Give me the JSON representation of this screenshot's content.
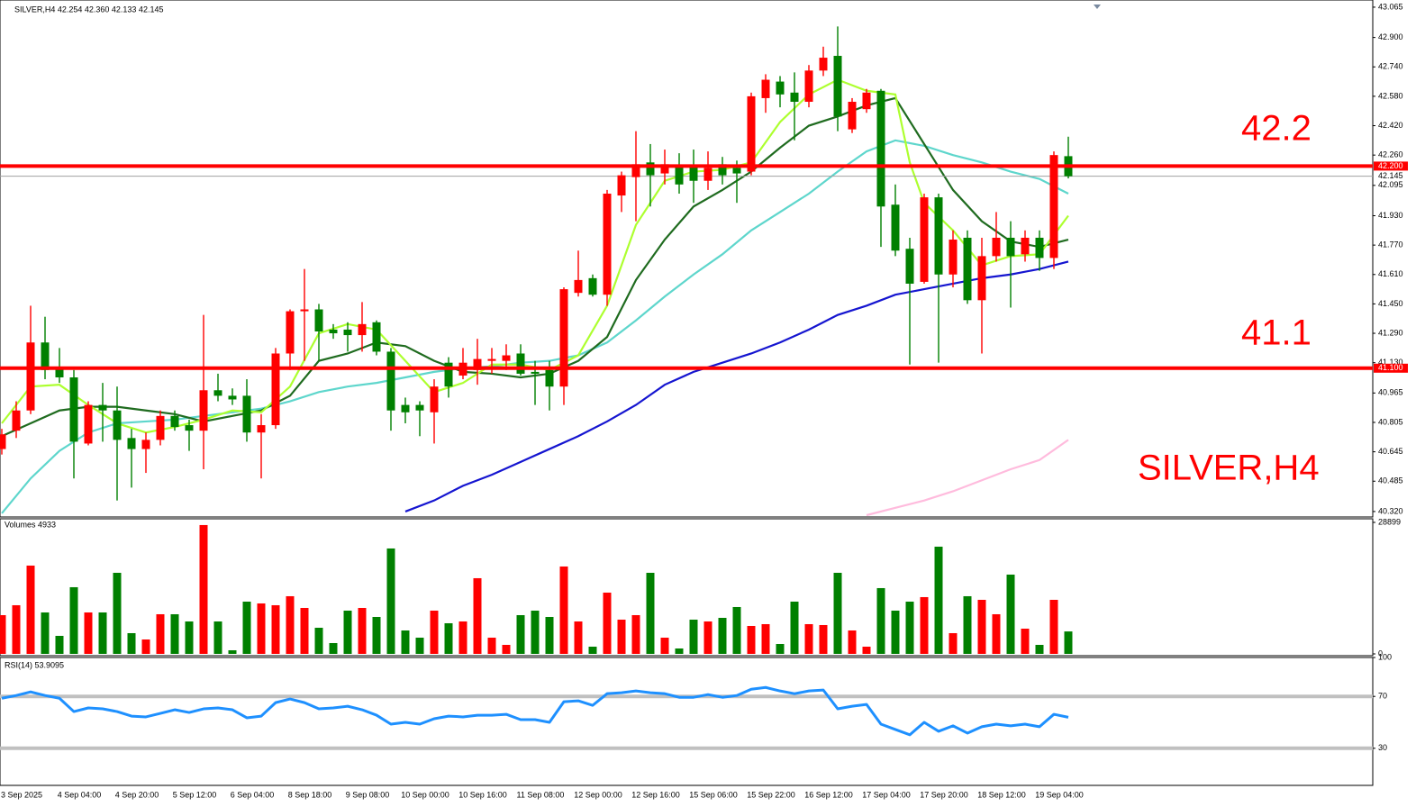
{
  "chart_data": [
    {
      "type": "candlestick",
      "title": "SILVER,H4  42.254 42.360 42.133 42.145",
      "annotations": [
        "42.2",
        "41.1",
        "SILVER,H4"
      ],
      "up_color": "#ff0000",
      "down_color": "#008000",
      "categories": [
        null,
        "3 Sep 2025",
        null,
        null,
        null,
        "4 Sep 04:00",
        null,
        null,
        null,
        "4 Sep 20:00",
        null,
        null,
        null,
        "5 Sep 12:00",
        null,
        null,
        null,
        "6 Sep 04:00",
        null,
        null,
        null,
        "8 Sep 18:00",
        null,
        null,
        null,
        "9 Sep 08:00",
        null,
        null,
        null,
        "10 Sep 00:00",
        null,
        null,
        null,
        "10 Sep 16:00",
        null,
        null,
        null,
        "11 Sep 08:00",
        null,
        null,
        null,
        "12 Sep 00:00",
        null,
        null,
        null,
        "12 Sep 16:00",
        null,
        null,
        null,
        "15 Sep 06:00",
        null,
        null,
        null,
        "15 Sep 22:00",
        null,
        null,
        null,
        "16 Sep 12:00",
        null,
        null,
        null,
        "17 Sep 04:00",
        null,
        null,
        null,
        "17 Sep 20:00",
        null,
        null,
        null,
        "18 Sep 12:00",
        null,
        null,
        null,
        "19 Sep 04:00",
        null
      ],
      "open": [
        40.66,
        40.76,
        40.87,
        41.24,
        41.1,
        41.05,
        40.69,
        40.9,
        40.87,
        40.72,
        40.66,
        40.71,
        40.84,
        40.79,
        40.76,
        40.98,
        40.95,
        40.95,
        40.75,
        40.79,
        41.18,
        41.41,
        41.42,
        41.31,
        41.31,
        41.28,
        41.35,
        41.19,
        40.9,
        40.9,
        40.86,
        41.13,
        41.06,
        41.09,
        41.14,
        41.14,
        41.18,
        41.08,
        41.09,
        41.0,
        41.51,
        41.59,
        41.5,
        42.04,
        42.14,
        42.22,
        42.16,
        42.2,
        42.2,
        42.12,
        42.21,
        42.19,
        42.17,
        42.57,
        42.66,
        42.6,
        42.55,
        42.72,
        42.8,
        42.4,
        42.51,
        42.61,
        41.99,
        41.75,
        41.57,
        42.03,
        41.61,
        41.81,
        41.47,
        41.71,
        41.81,
        41.72,
        41.81,
        41.7,
        42.254
      ],
      "high": [
        40.77,
        40.92,
        41.44,
        41.38,
        41.21,
        41.09,
        40.92,
        41.02,
        41.0,
        40.77,
        40.75,
        40.87,
        40.87,
        40.82,
        41.39,
        41.07,
        40.99,
        41.04,
        40.85,
        41.21,
        41.42,
        41.64,
        41.45,
        41.34,
        41.35,
        41.46,
        41.36,
        41.21,
        40.94,
        40.92,
        41.04,
        41.16,
        41.21,
        41.26,
        41.21,
        41.23,
        41.23,
        41.14,
        41.14,
        41.54,
        41.74,
        41.61,
        42.07,
        42.17,
        42.39,
        42.32,
        42.29,
        42.27,
        42.29,
        42.28,
        42.25,
        42.23,
        42.6,
        42.7,
        42.69,
        42.71,
        42.75,
        42.85,
        42.96,
        42.57,
        42.62,
        42.62,
        42.1,
        41.81,
        42.05,
        42.05,
        41.85,
        41.85,
        41.81,
        41.95,
        41.9,
        41.85,
        41.85,
        42.28,
        42.36
      ],
      "low": [
        40.63,
        40.72,
        40.85,
        41.04,
        41.02,
        40.5,
        40.68,
        40.7,
        40.38,
        40.45,
        40.53,
        40.68,
        40.76,
        40.65,
        40.55,
        40.92,
        40.9,
        40.7,
        40.5,
        40.77,
        41.09,
        41.14,
        41.14,
        41.26,
        41.19,
        41.19,
        41.17,
        40.76,
        40.8,
        40.73,
        40.69,
        40.94,
        41.04,
        41.01,
        41.07,
        41.09,
        41.06,
        40.9,
        40.87,
        40.9,
        41.49,
        41.49,
        41.44,
        41.95,
        41.9,
        41.98,
        42.1,
        42.05,
        42.0,
        42.07,
        42.1,
        42.0,
        42.15,
        42.49,
        42.52,
        42.34,
        42.52,
        42.69,
        42.39,
        42.38,
        42.49,
        41.76,
        41.71,
        41.12,
        41.56,
        41.13,
        41.54,
        41.45,
        41.18,
        41.68,
        41.43,
        41.68,
        41.63,
        41.64,
        42.133
      ],
      "close": [
        40.74,
        40.87,
        41.24,
        41.09,
        41.05,
        40.7,
        40.9,
        40.87,
        40.71,
        40.66,
        40.71,
        40.84,
        40.78,
        40.76,
        40.98,
        40.95,
        40.93,
        40.75,
        40.79,
        41.18,
        41.41,
        41.42,
        41.3,
        41.29,
        41.28,
        41.34,
        41.19,
        40.87,
        40.86,
        40.87,
        41.0,
        41.0,
        41.13,
        41.15,
        41.15,
        41.17,
        41.07,
        41.07,
        41.0,
        41.53,
        41.58,
        41.5,
        42.05,
        42.15,
        42.21,
        42.15,
        42.21,
        42.1,
        42.12,
        42.19,
        42.15,
        42.16,
        42.58,
        42.67,
        42.59,
        42.55,
        42.72,
        42.79,
        42.47,
        42.55,
        42.6,
        41.98,
        41.74,
        41.56,
        42.03,
        41.61,
        41.8,
        41.47,
        41.71,
        41.81,
        41.71,
        41.81,
        41.7,
        42.26,
        42.145
      ],
      "series": [
        {
          "color": "#ff69b4",
          "opacity": 0.45,
          "x": [
            60,
            62,
            64,
            66,
            68,
            70,
            72,
            74
          ],
          "values": [
            40.3,
            40.34,
            40.38,
            40.43,
            40.49,
            40.55,
            40.6,
            40.71
          ]
        },
        {
          "color": "#1515d0",
          "x": [
            28,
            30,
            32,
            34,
            36,
            38,
            40,
            42,
            44,
            46,
            48,
            50,
            52,
            54,
            56,
            58,
            60,
            62,
            64,
            66,
            68,
            70,
            72,
            74
          ],
          "values": [
            40.32,
            40.38,
            40.46,
            40.52,
            40.59,
            40.66,
            40.73,
            40.81,
            40.9,
            41.01,
            41.08,
            41.13,
            41.18,
            41.24,
            41.31,
            41.39,
            41.44,
            41.5,
            41.53,
            41.56,
            41.59,
            41.61,
            41.64,
            41.68
          ]
        },
        {
          "color": "#5ed6cc",
          "x": [
            0,
            2,
            4,
            6,
            8,
            10,
            12,
            14,
            16,
            18,
            20,
            22,
            24,
            26,
            28,
            30,
            32,
            34,
            36,
            38,
            40,
            42,
            44,
            46,
            48,
            50,
            52,
            54,
            56,
            58,
            60,
            62,
            64,
            66,
            68,
            70,
            72,
            74
          ],
          "values": [
            40.31,
            40.5,
            40.65,
            40.75,
            40.8,
            40.81,
            40.82,
            40.84,
            40.86,
            40.88,
            40.92,
            40.97,
            41.0,
            41.02,
            41.05,
            41.08,
            41.1,
            41.11,
            41.13,
            41.14,
            41.17,
            41.24,
            41.36,
            41.49,
            41.61,
            41.72,
            41.85,
            41.95,
            42.05,
            42.17,
            42.28,
            42.34,
            42.31,
            42.26,
            42.22,
            42.17,
            42.13,
            42.05
          ]
        },
        {
          "color": "#1f6b1f",
          "x": [
            0,
            2,
            4,
            6,
            8,
            10,
            12,
            14,
            16,
            18,
            20,
            22,
            24,
            26,
            28,
            30,
            32,
            34,
            36,
            38,
            40,
            42,
            44,
            46,
            48,
            50,
            52,
            54,
            56,
            58,
            60,
            62,
            64,
            66,
            68,
            70,
            72,
            74
          ],
          "values": [
            40.73,
            40.8,
            40.87,
            40.89,
            40.89,
            40.87,
            40.85,
            40.81,
            40.84,
            40.87,
            40.95,
            41.14,
            41.18,
            41.24,
            41.22,
            41.14,
            41.08,
            41.07,
            41.05,
            41.07,
            41.14,
            41.27,
            41.58,
            41.8,
            41.98,
            42.07,
            42.17,
            42.3,
            42.42,
            42.47,
            42.53,
            42.57,
            42.32,
            42.07,
            41.9,
            41.79,
            41.76,
            41.8
          ]
        },
        {
          "color": "#adff2f",
          "x": [
            0,
            2,
            4,
            6,
            8,
            10,
            12,
            14,
            16,
            18,
            20,
            22,
            24,
            26,
            28,
            30,
            32,
            34,
            36,
            38,
            40,
            42,
            44,
            46,
            48,
            50,
            52,
            54,
            56,
            58,
            60,
            62,
            63,
            64,
            66,
            68,
            70,
            72,
            74
          ],
          "values": [
            40.8,
            41.0,
            41.01,
            40.9,
            40.8,
            40.75,
            40.78,
            40.82,
            40.87,
            40.86,
            41.0,
            41.29,
            41.34,
            41.31,
            41.14,
            40.97,
            41.02,
            41.12,
            41.12,
            41.09,
            41.17,
            41.44,
            41.88,
            42.12,
            42.17,
            42.18,
            42.22,
            42.44,
            42.59,
            42.67,
            42.61,
            42.59,
            42.22,
            42.0,
            41.85,
            41.66,
            41.71,
            41.72,
            41.93
          ]
        }
      ],
      "levels": [
        {
          "value": 42.2,
          "label": "42.200",
          "color": "#ff0000"
        },
        {
          "value": 41.1,
          "label": "41.100",
          "color": "#ff0000"
        }
      ],
      "current": {
        "value": 42.145,
        "label": "42.145",
        "color": "#a0a0a0"
      },
      "ylim": [
        40.3,
        43.104
      ],
      "yticks": [
        43.065,
        {
          "value": 42.9,
          "label": "42.900"
        },
        {
          "value": 42.74,
          "label": "42.740"
        },
        {
          "value": 42.58,
          "label": "42.580"
        },
        {
          "value": 42.42,
          "label": "42.420"
        },
        {
          "value": 42.26,
          "label": "42.260"
        },
        42.095,
        {
          "value": 41.93,
          "label": "41.930"
        },
        {
          "value": 41.77,
          "label": "41.770"
        },
        {
          "value": 41.61,
          "label": "41.610"
        },
        {
          "value": 41.45,
          "label": "41.450"
        },
        {
          "value": 41.29,
          "label": "41.290"
        },
        {
          "value": 41.13,
          "label": "41.130"
        },
        40.965,
        40.805,
        40.645,
        40.485,
        {
          "value": 40.32,
          "label": "40.320"
        }
      ]
    },
    {
      "type": "bar",
      "title": "Volumes 4933",
      "values": [
        8514,
        10692,
        19404,
        9108,
        3960,
        14652,
        9108,
        9108,
        17820,
        4554,
        3168,
        8712,
        8712,
        7128,
        28314,
        7128,
        792,
        11484,
        11088,
        10692,
        12672,
        10098,
        5742,
        2376,
        9504,
        10098,
        8118,
        23166,
        5148,
        3564,
        9504,
        6732,
        7128,
        16632,
        3564,
        1980,
        8514,
        9504,
        8118,
        19206,
        7128,
        1584,
        13464,
        7524,
        8514,
        17820,
        3564,
        1188,
        7524,
        7128,
        7920,
        10296,
        6138,
        6534,
        2178,
        11484,
        6534,
        6336,
        17820,
        5148,
        1584,
        14454,
        9504,
        11484,
        12474,
        23562,
        4554,
        12672,
        11880,
        8712,
        17424,
        5544,
        1980,
        11880,
        4933
      ],
      "ylim": [
        0,
        28899
      ],
      "yticks": [
        0,
        28899
      ]
    },
    {
      "type": "line",
      "title": "RSI(14) 53.9095",
      "color": "#1e90ff",
      "values": [
        68.6,
        70.7,
        73.5,
        70.7,
        68.6,
        58.3,
        61.1,
        60.4,
        58.3,
        54.8,
        54.2,
        56.9,
        59.7,
        57.6,
        60.4,
        61.1,
        59.7,
        53.5,
        54.8,
        65.2,
        68.0,
        65.2,
        60.4,
        61.1,
        62.4,
        59.7,
        55.5,
        48.6,
        50.0,
        48.6,
        52.8,
        54.8,
        54.2,
        55.5,
        55.5,
        56.2,
        52.1,
        52.1,
        50.0,
        65.9,
        66.6,
        63.1,
        72.1,
        72.8,
        74.2,
        72.8,
        72.1,
        69.3,
        69.3,
        71.4,
        69.3,
        70.7,
        75.5,
        76.9,
        74.2,
        72.1,
        74.2,
        74.9,
        60.4,
        62.4,
        63.8,
        48.6,
        44.5,
        40.4,
        50.0,
        43.1,
        47.3,
        41.7,
        46.6,
        48.6,
        47.3,
        48.6,
        46.6,
        56.2,
        53.91
      ],
      "levels": [
        70,
        30
      ],
      "level_color": "#c0c0c0",
      "ylim": [
        0,
        100
      ],
      "yticks": [
        30,
        70,
        100
      ]
    }
  ]
}
